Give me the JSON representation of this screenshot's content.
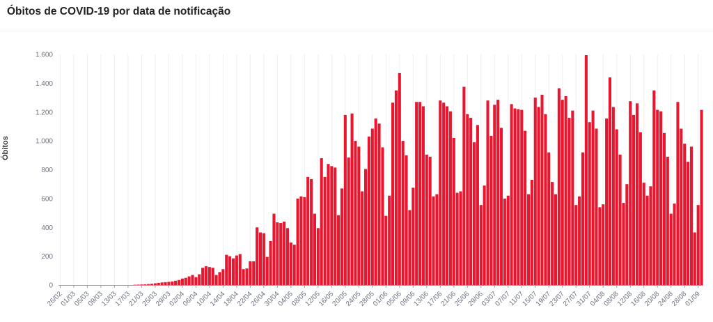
{
  "title": "Óbitos de COVID-19 por data de notificação",
  "chart_data": {
    "type": "bar",
    "title": "Óbitos de COVID-19 por data de notificação",
    "ylabel": "Óbitos",
    "xlabel": "",
    "ylim": [
      0,
      1600
    ],
    "yticks": [
      0,
      200,
      400,
      600,
      800,
      1000,
      1200,
      1400,
      1600
    ],
    "ytick_labels": [
      "0",
      "200",
      "400",
      "600",
      "800",
      "1.000",
      "1.200",
      "1.400",
      "1.600"
    ],
    "grid": "vertical",
    "bar_color": "#e8172f",
    "xtick_labels": [
      "26/02",
      "01/03",
      "05/03",
      "09/03",
      "13/03",
      "17/03",
      "21/03",
      "25/03",
      "29/03",
      "02/04",
      "06/04",
      "10/04",
      "14/04",
      "18/04",
      "22/04",
      "26/04",
      "30/04",
      "04/05",
      "08/05",
      "12/05",
      "16/05",
      "20/05",
      "24/05",
      "28/05",
      "01/06",
      "05/06",
      "09/06",
      "13/06",
      "17/06",
      "21/06",
      "25/06",
      "29/06",
      "03/07",
      "07/07",
      "11/07",
      "15/07",
      "19/07",
      "23/07",
      "27/07",
      "31/07",
      "04/08",
      "08/08",
      "12/08",
      "16/08",
      "20/08",
      "24/08",
      "28/08",
      "01/09"
    ],
    "values": [
      0,
      0,
      0,
      0,
      0,
      0,
      0,
      0,
      0,
      0,
      0,
      0,
      0,
      0,
      0,
      0,
      0,
      0,
      0,
      0,
      0,
      0,
      2,
      3,
      4,
      5,
      7,
      9,
      12,
      15,
      18,
      20,
      22,
      25,
      30,
      35,
      45,
      50,
      60,
      70,
      55,
      75,
      120,
      130,
      125,
      120,
      70,
      90,
      110,
      210,
      200,
      185,
      205,
      215,
      110,
      115,
      165,
      165,
      400,
      365,
      360,
      195,
      305,
      495,
      435,
      430,
      440,
      395,
      295,
      280,
      600,
      615,
      610,
      750,
      735,
      495,
      395,
      880,
      750,
      840,
      825,
      815,
      485,
      670,
      1180,
      885,
      1190,
      1000,
      960,
      650,
      805,
      1030,
      1085,
      1155,
      1120,
      955,
      480,
      620,
      1265,
      1350,
      1470,
      1000,
      900,
      520,
      675,
      1270,
      1270,
      1240,
      905,
      890,
      615,
      630,
      1280,
      1265,
      1240,
      1205,
      1020,
      640,
      650,
      1375,
      1185,
      1160,
      990,
      1110,
      555,
      690,
      1280,
      1035,
      1250,
      1285,
      1090,
      600,
      620,
      1255,
      1225,
      1220,
      1215,
      1070,
      630,
      730,
      1300,
      1235,
      1320,
      1185,
      920,
      715,
      630,
      1365,
      1285,
      1310,
      1160,
      1210,
      555,
      615,
      920,
      1595,
      1130,
      1210,
      1085,
      540,
      560,
      1155,
      1440,
      1235,
      1080,
      905,
      570,
      700,
      1275,
      1180,
      1260,
      1060,
      710,
      620,
      685,
      1350,
      1215,
      1205,
      1055,
      890,
      495,
      565,
      1270,
      1085,
      980,
      855,
      960,
      365,
      555,
      1215
    ]
  }
}
